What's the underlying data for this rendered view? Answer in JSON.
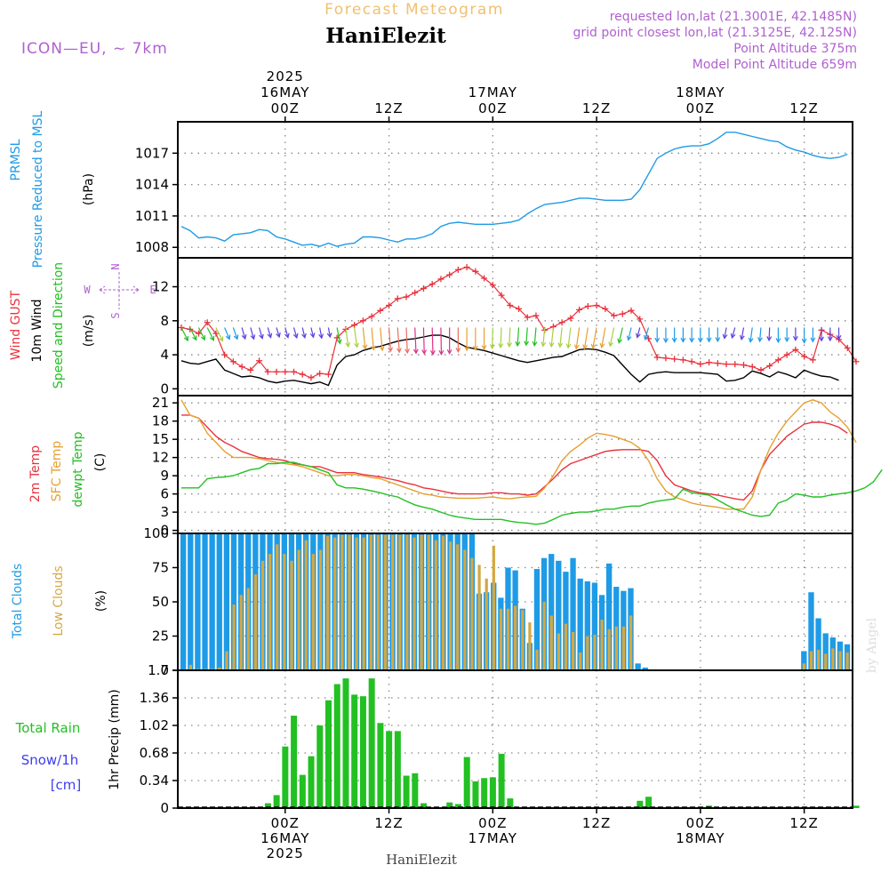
{
  "header": {
    "product": "Forecast Meteogram",
    "location": "HaniElezit",
    "model": "ICON—EU, ~ 7km",
    "requested": "requested lon,lat (21.3001E, 42.1485N)",
    "gridpoint": "grid point closest lon,lat (21.3125E, 42.125N)",
    "point_altitude": "Point Altitude 375m",
    "model_altitude": "Model Point Altitude 659m",
    "credit": "by Angel",
    "footer": "HaniElezit"
  },
  "time_axis": {
    "top": [
      {
        "idx": 12,
        "lines": [
          "2025",
          "16MAY",
          "00Z"
        ]
      },
      {
        "idx": 24,
        "lines": [
          "12Z"
        ]
      },
      {
        "idx": 36,
        "lines": [
          "17MAY",
          "00Z"
        ]
      },
      {
        "idx": 48,
        "lines": [
          "12Z"
        ]
      },
      {
        "idx": 60,
        "lines": [
          "18MAY",
          "00Z"
        ]
      },
      {
        "idx": 72,
        "lines": [
          "12Z"
        ]
      }
    ],
    "bottom": [
      {
        "idx": 12,
        "lines": [
          "00Z",
          "16MAY",
          "2025"
        ]
      },
      {
        "idx": 24,
        "lines": [
          "12Z"
        ]
      },
      {
        "idx": 36,
        "lines": [
          "00Z",
          "17MAY"
        ]
      },
      {
        "idx": 48,
        "lines": [
          "12Z"
        ]
      },
      {
        "idx": 60,
        "lines": [
          "00Z",
          "18MAY"
        ]
      },
      {
        "idx": 72,
        "lines": [
          "12Z"
        ]
      }
    ]
  },
  "panels": {
    "pressure": {
      "labels": [
        {
          "text": "PRMSL",
          "color": "#1e9be6"
        },
        {
          "text": "Pressure Reduced to MSL",
          "color": "#1e9be6"
        },
        {
          "text": "(hPa)",
          "color": "#000000"
        }
      ]
    },
    "wind": {
      "labels": [
        {
          "text": "Wind GUST",
          "color": "#e8323c"
        },
        {
          "text": "10m Wind",
          "color": "#000000"
        },
        {
          "text": "Speed and Direction",
          "color": "#22c022"
        },
        {
          "text": "(m/s)",
          "color": "#000000"
        }
      ],
      "compass": [
        "N",
        "W",
        "E",
        "S"
      ]
    },
    "temperature": {
      "labels": [
        {
          "text": "2m Temp",
          "color": "#e8323c"
        },
        {
          "text": "SFC Temp",
          "color": "#e6a030"
        },
        {
          "text": "dewpt Temp",
          "color": "#22c022"
        },
        {
          "text": "(C)",
          "color": "#000000"
        }
      ]
    },
    "clouds": {
      "labels": [
        {
          "text": "Total Clouds",
          "color": "#1e9be6"
        },
        {
          "text": "Low Clouds",
          "color": "#d4a843"
        },
        {
          "text": "(%)",
          "color": "#000000"
        }
      ]
    },
    "precip": {
      "labels": [
        {
          "text": "Total Rain",
          "color": "#22c022"
        },
        {
          "text": "Snow/1h",
          "color": "#3c3cf0"
        },
        {
          "text": "[cm]",
          "color": "#3c3cf0"
        },
        {
          "text": "1hr Precip (mm)",
          "color": "#000000"
        }
      ]
    }
  },
  "chart_data": [
    {
      "type": "line",
      "name": "pressure",
      "ylim": [
        1007,
        1020
      ],
      "yticks": [
        1008,
        1011,
        1014,
        1017
      ],
      "ytick_labels": [
        "1008",
        "1011",
        "1014",
        "1017"
      ],
      "series": [
        {
          "color": "#1e9be6",
          "values": [
            1010.0,
            1009.6,
            1008.9,
            1009.0,
            1008.9,
            1008.6,
            1009.2,
            1009.3,
            1009.4,
            1009.7,
            1009.6,
            1009.0,
            1008.8,
            1008.5,
            1008.2,
            1008.3,
            1008.1,
            1008.4,
            1008.1,
            1008.3,
            1008.4,
            1009.0,
            1009.0,
            1008.9,
            1008.7,
            1008.5,
            1008.8,
            1008.8,
            1009.0,
            1009.3,
            1010.0,
            1010.3,
            1010.4,
            1010.3,
            1010.2,
            1010.2,
            1010.2,
            1010.3,
            1010.4,
            1010.6,
            1011.2,
            1011.7,
            1012.1,
            1012.2,
            1012.3,
            1012.5,
            1012.7,
            1012.7,
            1012.6,
            1012.5,
            1012.5,
            1012.5,
            1012.6,
            1013.5,
            1015.0,
            1016.5,
            1017.0,
            1017.4,
            1017.6,
            1017.7,
            1017.7,
            1017.9,
            1018.4,
            1019.0,
            1019.0,
            1018.8,
            1018.6,
            1018.4,
            1018.2,
            1018.1,
            1017.6,
            1017.3,
            1017.1,
            1016.8,
            1016.6,
            1016.5,
            1016.6,
            1016.9
          ]
        }
      ]
    },
    {
      "type": "line",
      "name": "wind",
      "ylim": [
        -0.8,
        15.4
      ],
      "yticks": [
        0,
        4,
        8,
        12
      ],
      "ytick_labels": [
        "0",
        "4",
        "8",
        "12"
      ],
      "series": [
        {
          "color": "#e8323c",
          "marker": "+",
          "values": [
            7.2,
            7.0,
            6.5,
            7.8,
            6.5,
            4.0,
            3.2,
            2.6,
            2.2,
            3.3,
            2.0,
            2.0,
            2.0,
            2.0,
            1.7,
            1.3,
            1.8,
            1.7,
            6.0,
            7.0,
            7.5,
            8.0,
            8.5,
            9.2,
            9.8,
            10.6,
            10.8,
            11.3,
            11.8,
            12.3,
            12.9,
            13.4,
            14.0,
            14.3,
            13.8,
            13.0,
            12.2,
            11.0,
            9.8,
            9.4,
            8.4,
            8.6,
            6.9,
            7.3,
            7.8,
            8.3,
            9.3,
            9.7,
            9.8,
            9.4,
            8.6,
            8.8,
            9.2,
            8.2,
            5.9,
            3.7,
            3.6,
            3.5,
            3.4,
            3.2,
            2.9,
            3.1,
            3.0,
            2.9,
            2.9,
            2.8,
            2.6,
            2.2,
            2.7,
            3.4,
            4.0,
            4.6,
            3.8,
            3.4,
            6.9,
            6.4,
            5.8,
            4.8,
            3.2
          ]
        },
        {
          "color": "#000000",
          "values": [
            3.3,
            3.0,
            2.9,
            3.2,
            3.5,
            2.2,
            1.8,
            1.4,
            1.5,
            1.3,
            0.9,
            0.7,
            0.9,
            1.0,
            0.8,
            0.6,
            0.8,
            0.4,
            2.8,
            3.8,
            4.0,
            4.5,
            4.8,
            5.0,
            5.3,
            5.6,
            5.8,
            5.9,
            6.1,
            6.3,
            6.3,
            6.0,
            5.4,
            4.9,
            4.7,
            4.5,
            4.2,
            3.9,
            3.6,
            3.3,
            3.1,
            3.3,
            3.5,
            3.7,
            3.8,
            4.2,
            4.6,
            4.7,
            4.6,
            4.3,
            3.9,
            2.8,
            1.7,
            0.8,
            1.7,
            1.9,
            2.0,
            1.9,
            1.9,
            1.9,
            1.9,
            1.8,
            1.7,
            0.9,
            1.0,
            1.3,
            2.1,
            1.8,
            1.4,
            2.0,
            1.7,
            1.3,
            2.2,
            1.8,
            1.5,
            1.4,
            1.0
          ]
        },
        {
          "kind": "wind_arrows",
          "speed_series": 1,
          "dir_deg": [
            45,
            45,
            45,
            45,
            45,
            40,
            35,
            30,
            30,
            30,
            30,
            30,
            30,
            30,
            25,
            25,
            20,
            20,
            20,
            15,
            15,
            12,
            10,
            10,
            8,
            8,
            5,
            5,
            3,
            3,
            2,
            0,
            0,
            0,
            0,
            0,
            -3,
            -5,
            -5,
            -8,
            -8,
            -10,
            -10,
            -12,
            -12,
            -14,
            -16,
            -18,
            -20,
            -20,
            -22,
            -25,
            -25,
            -28,
            -30,
            0,
            0,
            0,
            0,
            0,
            0,
            0,
            0,
            -20,
            -30,
            -20,
            -15,
            -10,
            -5,
            0,
            0,
            0,
            0,
            0,
            0,
            0,
            0
          ]
        }
      ]
    },
    {
      "type": "line",
      "name": "temperature",
      "ylim": [
        -0.5,
        22.2
      ],
      "yticks": [
        0,
        3,
        6,
        9,
        12,
        15,
        18,
        21
      ],
      "ytick_labels": [
        "0",
        "3",
        "6",
        "9",
        "12",
        "15",
        "18",
        "21"
      ],
      "series": [
        {
          "color": "#e8323c",
          "values": [
            19.0,
            19.0,
            18.5,
            17.0,
            15.5,
            14.5,
            13.8,
            13.0,
            12.5,
            12.0,
            11.8,
            11.7,
            11.5,
            11.0,
            10.8,
            10.5,
            10.5,
            10.0,
            9.5,
            9.5,
            9.5,
            9.2,
            9.0,
            8.8,
            8.5,
            8.2,
            7.8,
            7.5,
            7.0,
            6.8,
            6.5,
            6.2,
            6.0,
            6.0,
            6.0,
            6.0,
            6.2,
            6.2,
            6.0,
            6.0,
            5.8,
            6.0,
            7.2,
            8.5,
            10.0,
            11.0,
            11.5,
            12.0,
            12.5,
            13.0,
            13.2,
            13.3,
            13.3,
            13.3,
            13.0,
            11.5,
            9.0,
            7.5,
            7.0,
            6.5,
            6.2,
            6.0,
            5.8,
            5.5,
            5.2,
            5.0,
            6.5,
            10.0,
            12.5,
            14.0,
            15.5,
            16.5,
            17.5,
            17.8,
            17.8,
            17.5,
            17.0,
            16.0
          ]
        },
        {
          "color": "#e6a030",
          "values": [
            21.5,
            19.0,
            18.5,
            16.0,
            14.5,
            13.0,
            12.0,
            12.0,
            12.0,
            11.8,
            11.5,
            11.2,
            11.0,
            10.8,
            10.5,
            10.0,
            9.5,
            9.0,
            9.0,
            9.2,
            9.2,
            9.0,
            8.7,
            8.5,
            8.0,
            7.5,
            7.0,
            6.5,
            6.0,
            5.8,
            5.5,
            5.4,
            5.3,
            5.3,
            5.3,
            5.4,
            5.5,
            5.3,
            5.2,
            5.4,
            5.5,
            5.6,
            7.0,
            9.0,
            11.5,
            13.0,
            14.0,
            15.2,
            16.0,
            15.8,
            15.5,
            15.0,
            14.5,
            13.5,
            11.5,
            8.5,
            6.5,
            5.5,
            5.0,
            4.5,
            4.2,
            4.0,
            3.8,
            3.5,
            3.5,
            3.5,
            5.5,
            10.0,
            13.5,
            16.0,
            18.0,
            19.5,
            21.0,
            21.5,
            21.0,
            19.5,
            18.5,
            17.0,
            14.5
          ]
        },
        {
          "color": "#22c022",
          "values": [
            7.0,
            7.0,
            7.0,
            8.5,
            8.7,
            8.8,
            9.0,
            9.5,
            10.0,
            10.2,
            11.0,
            11.0,
            11.2,
            11.2,
            10.8,
            10.5,
            10.0,
            9.5,
            7.5,
            7.0,
            7.0,
            6.8,
            6.5,
            6.2,
            5.8,
            5.5,
            4.8,
            4.2,
            3.8,
            3.5,
            3.0,
            2.5,
            2.2,
            2.0,
            1.8,
            1.8,
            1.8,
            1.8,
            1.5,
            1.3,
            1.2,
            1.0,
            1.2,
            1.8,
            2.5,
            2.8,
            3.0,
            3.0,
            3.2,
            3.5,
            3.5,
            3.8,
            4.0,
            4.0,
            4.5,
            4.8,
            5.0,
            5.2,
            6.8,
            6.2,
            6.0,
            5.8,
            5.0,
            4.2,
            3.5,
            3.0,
            2.5,
            2.3,
            2.5,
            4.5,
            5.0,
            6.0,
            5.8,
            5.5,
            5.5,
            5.8,
            6.0,
            6.2,
            6.5,
            7.0,
            8.0,
            10.0
          ]
        }
      ]
    },
    {
      "type": "bar",
      "name": "clouds",
      "ylim": [
        0,
        100
      ],
      "yticks": [
        0,
        25,
        50,
        75,
        100
      ],
      "ytick_labels": [
        "0",
        "25",
        "50",
        "75",
        "100"
      ],
      "series": [
        {
          "color": "#1e9be6",
          "values": [
            100,
            100,
            100,
            100,
            100,
            100,
            100,
            100,
            100,
            100,
            100,
            100,
            100,
            100,
            100,
            100,
            100,
            100,
            100,
            100,
            100,
            100,
            100,
            100,
            100,
            100,
            100,
            100,
            100,
            100,
            100,
            100,
            100,
            100,
            100,
            100,
            100,
            100,
            100,
            100,
            100,
            56,
            57,
            64,
            53,
            75,
            73,
            45,
            20,
            74,
            82,
            85,
            80,
            72,
            82,
            67,
            65,
            64,
            55,
            78,
            61,
            58,
            60,
            5,
            2,
            0,
            0,
            0,
            0,
            0,
            0,
            0,
            0,
            0,
            0,
            0,
            0,
            0,
            0,
            0,
            0,
            0,
            0,
            0,
            0,
            0,
            14,
            57,
            38,
            27,
            24,
            21,
            19
          ]
        },
        {
          "color": "#d4a843",
          "values": [
            0,
            4,
            1,
            1,
            1,
            2,
            14,
            48,
            55,
            60,
            70,
            80,
            85,
            92,
            85,
            80,
            88,
            95,
            85,
            88,
            98,
            97,
            99,
            99,
            97,
            97,
            99,
            99,
            99,
            99,
            99,
            99,
            97,
            99,
            99,
            95,
            98,
            94,
            92,
            88,
            82,
            77,
            67,
            91,
            45,
            45,
            47,
            44,
            35,
            15,
            50,
            40,
            27,
            34,
            28,
            13,
            25,
            26,
            37,
            30,
            32,
            32,
            40,
            0,
            0,
            0,
            0,
            0,
            0,
            0,
            0,
            0,
            0,
            0,
            0,
            0,
            0,
            0,
            0,
            0,
            0,
            0,
            0,
            0,
            0,
            0,
            5,
            14,
            15,
            12,
            16,
            14,
            13
          ]
        }
      ]
    },
    {
      "type": "bar",
      "name": "precip",
      "ylim": [
        0,
        1.7
      ],
      "yticks": [
        0,
        0.34,
        0.68,
        1.02,
        1.36,
        1.7
      ],
      "ytick_labels": [
        "0",
        "0.34",
        "0.68",
        "1.02",
        "1.36",
        "1.7"
      ],
      "series": [
        {
          "color": "#22c022",
          "values": [
            0,
            0,
            0,
            0,
            0,
            0,
            0,
            0,
            0,
            0,
            0.06,
            0.16,
            0.76,
            1.14,
            0.41,
            0.64,
            1.02,
            1.33,
            1.53,
            1.6,
            1.4,
            1.38,
            1.6,
            1.05,
            0.95,
            0.95,
            0.4,
            0.43,
            0.06,
            0,
            0,
            0.07,
            0.05,
            0.63,
            0.33,
            0.37,
            0.38,
            0.67,
            0.12,
            0,
            0,
            0,
            0,
            0,
            0,
            0,
            0,
            0,
            0,
            0,
            0,
            0,
            0,
            0.09,
            0.14,
            0,
            0,
            0,
            0,
            0,
            0,
            0.03,
            0,
            0,
            0,
            0,
            0,
            0,
            0,
            0,
            0,
            0,
            0,
            0,
            0,
            0,
            0,
            0,
            0.03,
            0,
            0
          ]
        }
      ]
    }
  ]
}
